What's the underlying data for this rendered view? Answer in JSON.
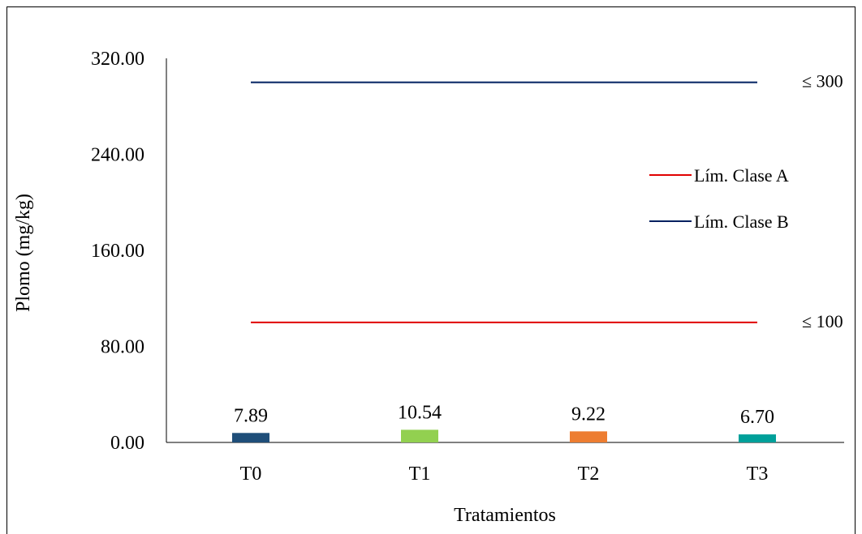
{
  "chart_data": {
    "type": "bar",
    "title": "",
    "xlabel": "Tratamientos",
    "ylabel": "Plomo (mg/kg)",
    "categories": [
      "T0",
      "T1",
      "T2",
      "T3"
    ],
    "values": [
      7.89,
      10.54,
      9.22,
      6.7
    ],
    "value_labels": [
      "7.89",
      "10.54",
      "9.22",
      "6.70"
    ],
    "bar_colors": [
      "#1f4e79",
      "#92d050",
      "#ed7d31",
      "#00a09a"
    ],
    "ylim": [
      0,
      320
    ],
    "yticks": [
      0,
      80,
      160,
      240,
      320
    ],
    "ytick_labels": [
      "0.00",
      "80.00",
      "160.00",
      "240.00",
      "320.00"
    ],
    "grid": false,
    "legend_position": "right",
    "reference_lines": [
      {
        "name": "Lím. Clase A",
        "value": 100,
        "label": "≤ 100",
        "color": "#e00000"
      },
      {
        "name": "Lím. Clase B",
        "value": 300,
        "label": "≤ 300",
        "color": "#002060"
      }
    ]
  }
}
